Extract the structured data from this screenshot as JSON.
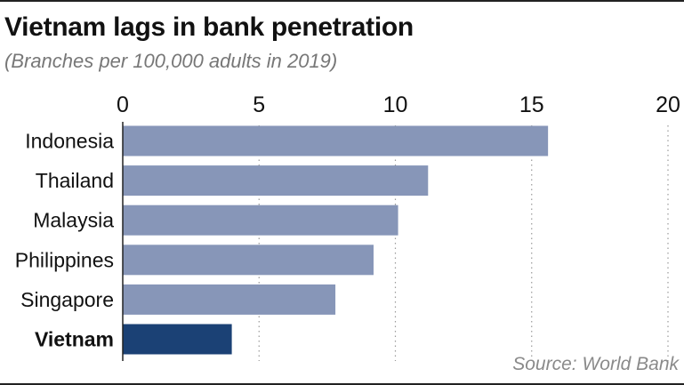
{
  "title": "Vietnam lags in bank penetration",
  "subtitle": "(Branches per 100,000 adults in 2019)",
  "source": "Source: World Bank",
  "colors": {
    "bar": "#8796b8",
    "highlight": "#1b4175",
    "grid": "#9a9a9a",
    "axis": "#222222",
    "text": "#111111"
  },
  "chart_data": {
    "type": "bar",
    "orientation": "horizontal",
    "categories": [
      "Indonesia",
      "Thailand",
      "Malaysia",
      "Philippines",
      "Singapore",
      "Vietnam"
    ],
    "values": [
      15.6,
      11.2,
      10.1,
      9.2,
      7.8,
      4.0
    ],
    "highlight": "Vietnam",
    "xlim": [
      0,
      20
    ],
    "xticks": [
      0,
      5,
      10,
      15,
      20
    ],
    "xtick_labels": [
      "0",
      "5",
      "10",
      "15",
      "20"
    ],
    "grid": true,
    "title": "Vietnam lags in bank penetration",
    "subtitle": "(Branches per 100,000 adults in 2019)"
  }
}
